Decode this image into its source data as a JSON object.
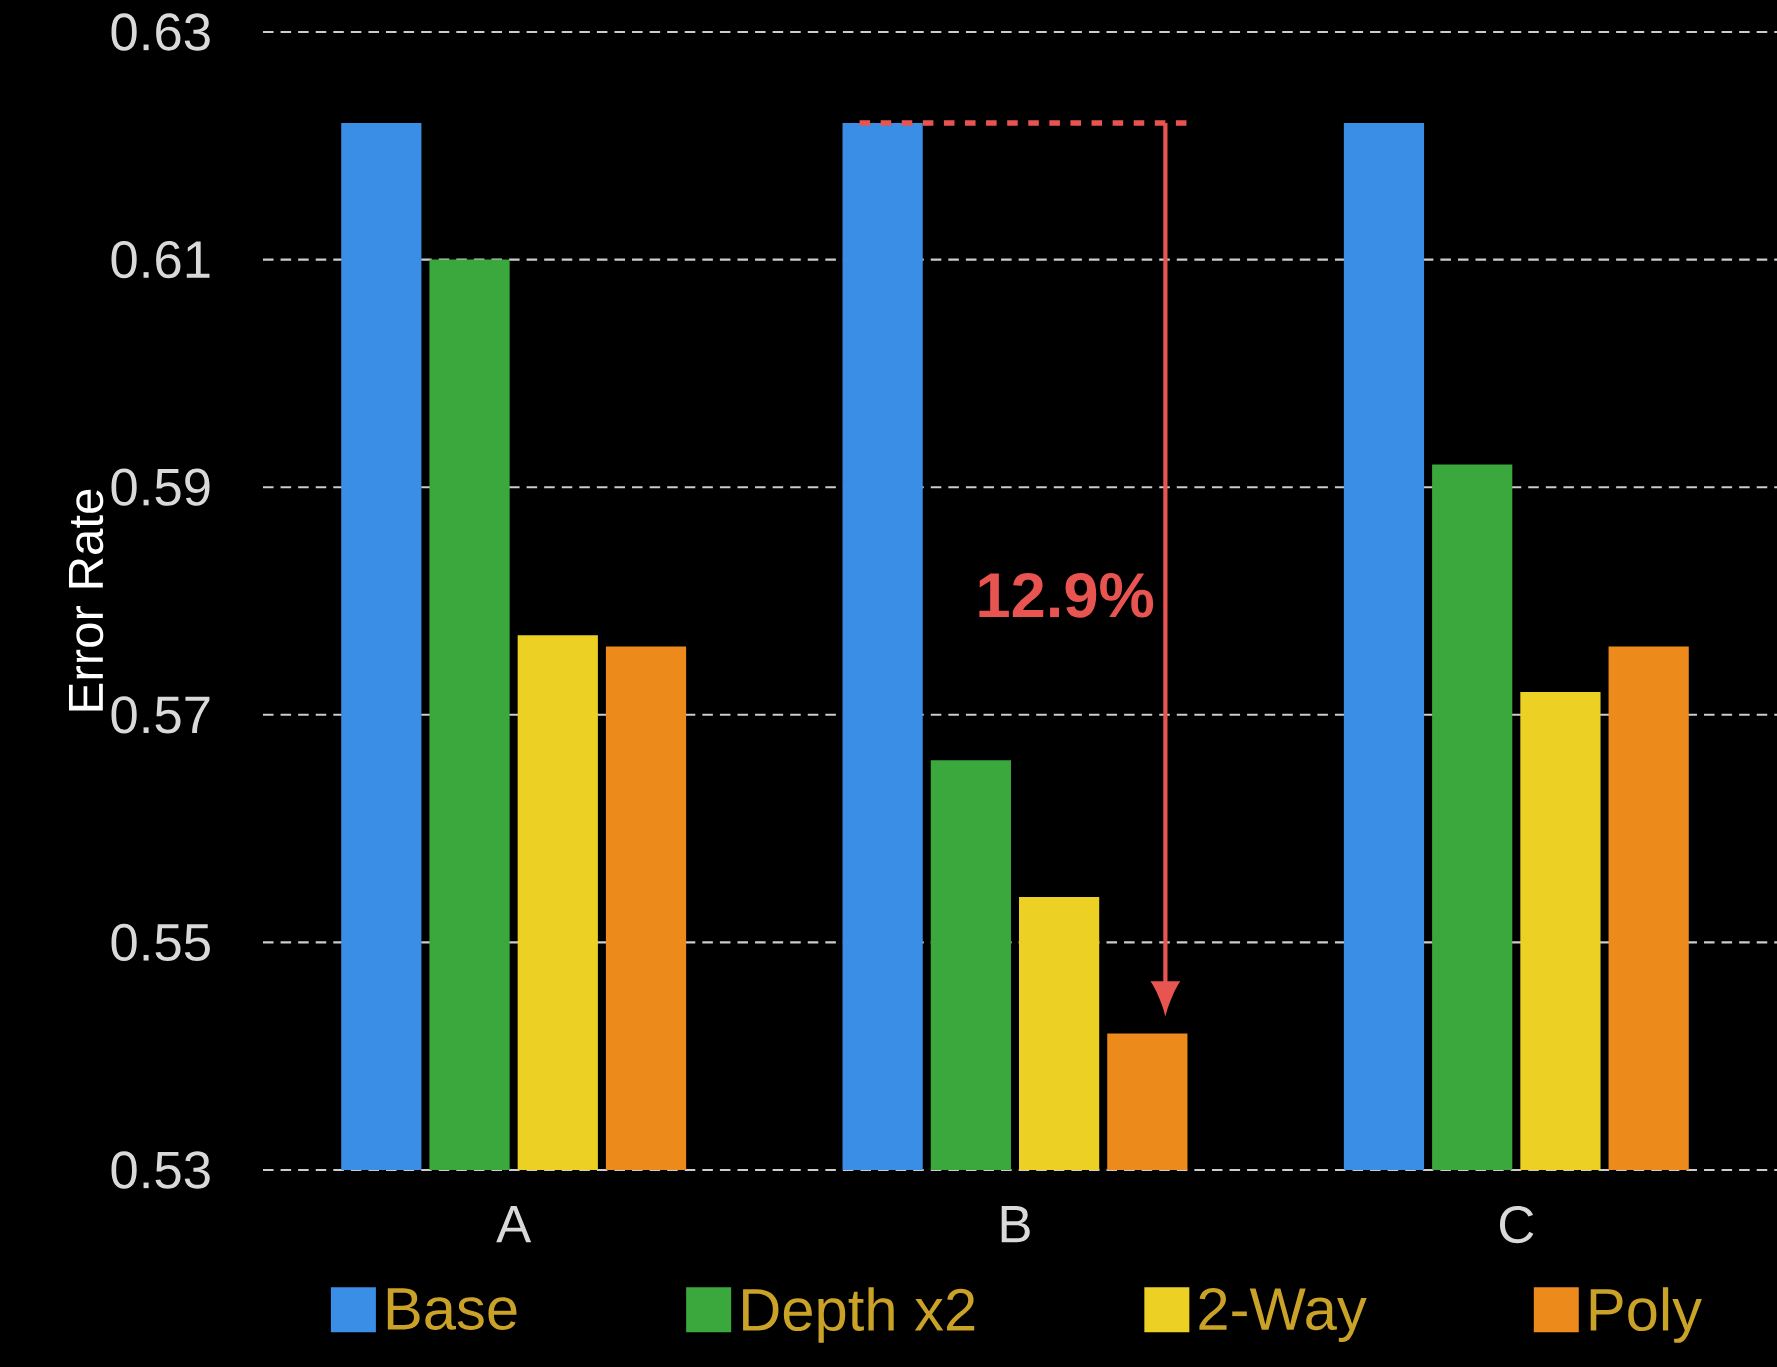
{
  "chart_data": {
    "type": "bar",
    "ylabel": "Error Rate",
    "categories": [
      "A",
      "B",
      "C"
    ],
    "series": [
      {
        "name": "Base",
        "color": "#3a8ee6",
        "values": [
          0.622,
          0.622,
          0.622
        ]
      },
      {
        "name": "Depth x2",
        "color": "#3aa83c",
        "values": [
          0.61,
          0.566,
          0.592
        ]
      },
      {
        "name": "2-Way",
        "color": "#ecd024",
        "values": [
          0.577,
          0.554,
          0.572
        ]
      },
      {
        "name": "Poly",
        "color": "#ec8a1c",
        "values": [
          0.576,
          0.542,
          0.576
        ]
      }
    ],
    "ylim": [
      0.53,
      0.63
    ],
    "yticks": [
      0.53,
      0.55,
      0.57,
      0.59,
      0.61,
      0.63
    ],
    "grid": "y",
    "legend": "bottom",
    "ref_lines": [
      {
        "axis": "y",
        "value": 0.622,
        "color": "#e85450",
        "line_style": "dashed"
      }
    ],
    "annotations": [
      "12.9%"
    ]
  }
}
